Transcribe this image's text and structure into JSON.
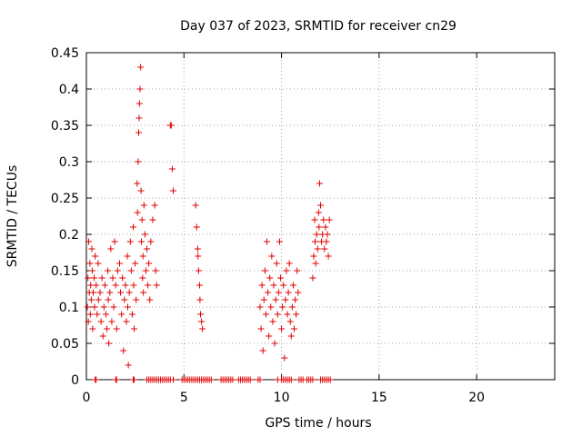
{
  "chart_data": {
    "type": "scatter",
    "title": "Day 037 of 2023, SRMTID for receiver cn29",
    "xlabel": "GPS time / hours",
    "ylabel": "SRMTID / TECUs",
    "xlim": [
      0,
      24
    ],
    "ylim": [
      0,
      0.45
    ],
    "xticks": [
      0,
      5,
      10,
      15,
      20
    ],
    "yticks": [
      0,
      0.05,
      0.1,
      0.15,
      0.2,
      0.25,
      0.3,
      0.35,
      0.4,
      0.45
    ],
    "grid": true,
    "marker": "+",
    "color": "#e00000",
    "series": [
      {
        "name": "SRMTID",
        "points": [
          [
            0.05,
            0.1
          ],
          [
            0.08,
            0.14
          ],
          [
            0.1,
            0.08
          ],
          [
            0.12,
            0.19
          ],
          [
            0.15,
            0.12
          ],
          [
            0.18,
            0.16
          ],
          [
            0.2,
            0.09
          ],
          [
            0.22,
            0.13
          ],
          [
            0.25,
            0.11
          ],
          [
            0.28,
            0.18
          ],
          [
            0.3,
            0.15
          ],
          [
            0.32,
            0.07
          ],
          [
            0.35,
            0.12
          ],
          [
            0.4,
            0.14
          ],
          [
            0.42,
            0.1
          ],
          [
            0.45,
            0.17
          ],
          [
            0.5,
            0.13
          ],
          [
            0.55,
            0.09
          ],
          [
            0.6,
            0.16
          ],
          [
            0.62,
            0.11
          ],
          [
            0.7,
            0.12
          ],
          [
            0.75,
            0.08
          ],
          [
            0.8,
            0.14
          ],
          [
            0.85,
            0.06
          ],
          [
            0.9,
            0.1
          ],
          [
            0.95,
            0.13
          ],
          [
            1.0,
            0.09
          ],
          [
            1.05,
            0.07
          ],
          [
            1.1,
            0.15
          ],
          [
            1.12,
            0.11
          ],
          [
            1.15,
            0.05
          ],
          [
            1.2,
            0.12
          ],
          [
            1.25,
            0.18
          ],
          [
            1.3,
            0.08
          ],
          [
            1.35,
            0.14
          ],
          [
            1.4,
            0.1
          ],
          [
            1.45,
            0.19
          ],
          [
            1.5,
            0.13
          ],
          [
            1.55,
            0.07
          ],
          [
            1.6,
            0.15
          ],
          [
            1.7,
            0.16
          ],
          [
            1.75,
            0.12
          ],
          [
            1.8,
            0.09
          ],
          [
            1.85,
            0.14
          ],
          [
            1.9,
            0.04
          ],
          [
            1.95,
            0.11
          ],
          [
            2.0,
            0.13
          ],
          [
            2.05,
            0.08
          ],
          [
            2.1,
            0.17
          ],
          [
            2.12,
            0.1
          ],
          [
            2.15,
            0.02
          ],
          [
            2.2,
            0.12
          ],
          [
            2.25,
            0.19
          ],
          [
            2.3,
            0.15
          ],
          [
            2.35,
            0.09
          ],
          [
            2.4,
            0.21
          ],
          [
            2.42,
            0.13
          ],
          [
            2.45,
            0.07
          ],
          [
            2.5,
            0.16
          ],
          [
            2.55,
            0.11
          ],
          [
            2.6,
            0.27
          ],
          [
            2.62,
            0.23
          ],
          [
            2.65,
            0.3
          ],
          [
            2.68,
            0.34
          ],
          [
            2.7,
            0.36
          ],
          [
            2.72,
            0.38
          ],
          [
            2.75,
            0.4
          ],
          [
            2.78,
            0.43
          ],
          [
            2.8,
            0.26
          ],
          [
            2.82,
            0.19
          ],
          [
            2.85,
            0.22
          ],
          [
            2.88,
            0.14
          ],
          [
            2.9,
            0.17
          ],
          [
            2.92,
            0.12
          ],
          [
            2.95,
            0.24
          ],
          [
            3.0,
            0.2
          ],
          [
            3.05,
            0.15
          ],
          [
            3.1,
            0.18
          ],
          [
            3.15,
            0.13
          ],
          [
            3.2,
            0.16
          ],
          [
            3.25,
            0.11
          ],
          [
            3.3,
            0.19
          ],
          [
            3.4,
            0.22
          ],
          [
            3.5,
            0.24
          ],
          [
            3.55,
            0.15
          ],
          [
            3.6,
            0.13
          ],
          [
            4.3,
            0.35
          ],
          [
            4.35,
            0.35
          ],
          [
            4.4,
            0.29
          ],
          [
            4.45,
            0.26
          ],
          [
            5.6,
            0.24
          ],
          [
            5.65,
            0.21
          ],
          [
            5.7,
            0.18
          ],
          [
            5.72,
            0.17
          ],
          [
            5.75,
            0.15
          ],
          [
            5.8,
            0.13
          ],
          [
            5.82,
            0.11
          ],
          [
            5.85,
            0.09
          ],
          [
            5.9,
            0.08
          ],
          [
            5.95,
            0.07
          ],
          [
            8.9,
            0.1
          ],
          [
            8.95,
            0.07
          ],
          [
            9.0,
            0.13
          ],
          [
            9.05,
            0.04
          ],
          [
            9.1,
            0.11
          ],
          [
            9.15,
            0.15
          ],
          [
            9.2,
            0.09
          ],
          [
            9.25,
            0.19
          ],
          [
            9.3,
            0.12
          ],
          [
            9.35,
            0.06
          ],
          [
            9.4,
            0.14
          ],
          [
            9.45,
            0.1
          ],
          [
            9.5,
            0.17
          ],
          [
            9.55,
            0.08
          ],
          [
            9.6,
            0.13
          ],
          [
            9.65,
            0.05
          ],
          [
            9.7,
            0.11
          ],
          [
            9.75,
            0.16
          ],
          [
            9.8,
            0.09
          ],
          [
            9.85,
            0.12
          ],
          [
            9.9,
            0.19
          ],
          [
            9.95,
            0.14
          ],
          [
            10.0,
            0.07
          ],
          [
            10.05,
            0.1
          ],
          [
            10.1,
            0.13
          ],
          [
            10.15,
            0.03
          ],
          [
            10.2,
            0.11
          ],
          [
            10.25,
            0.15
          ],
          [
            10.3,
            0.09
          ],
          [
            10.35,
            0.12
          ],
          [
            10.4,
            0.16
          ],
          [
            10.45,
            0.08
          ],
          [
            10.5,
            0.06
          ],
          [
            10.55,
            0.1
          ],
          [
            10.6,
            0.13
          ],
          [
            10.65,
            0.07
          ],
          [
            10.7,
            0.11
          ],
          [
            10.75,
            0.09
          ],
          [
            10.8,
            0.15
          ],
          [
            10.85,
            0.12
          ],
          [
            11.6,
            0.14
          ],
          [
            11.65,
            0.17
          ],
          [
            11.7,
            0.22
          ],
          [
            11.72,
            0.19
          ],
          [
            11.75,
            0.16
          ],
          [
            11.8,
            0.2
          ],
          [
            11.85,
            0.18
          ],
          [
            11.9,
            0.23
          ],
          [
            11.92,
            0.21
          ],
          [
            11.95,
            0.27
          ],
          [
            12.0,
            0.24
          ],
          [
            12.05,
            0.19
          ],
          [
            12.1,
            0.2
          ],
          [
            12.15,
            0.22
          ],
          [
            12.2,
            0.18
          ],
          [
            12.25,
            0.21
          ],
          [
            12.3,
            0.19
          ],
          [
            12.35,
            0.2
          ],
          [
            12.4,
            0.17
          ],
          [
            12.45,
            0.22
          ],
          [
            0.45,
            0
          ],
          [
            0.5,
            0
          ],
          [
            1.5,
            0
          ],
          [
            1.55,
            0
          ],
          [
            2.4,
            0
          ],
          [
            2.45,
            0
          ],
          [
            3.1,
            0
          ],
          [
            3.2,
            0
          ],
          [
            3.3,
            0
          ],
          [
            3.4,
            0
          ],
          [
            3.5,
            0
          ],
          [
            3.6,
            0
          ],
          [
            3.7,
            0
          ],
          [
            3.8,
            0
          ],
          [
            3.9,
            0
          ],
          [
            4.0,
            0
          ],
          [
            4.1,
            0
          ],
          [
            4.2,
            0
          ],
          [
            4.3,
            0
          ],
          [
            4.45,
            0
          ],
          [
            4.9,
            0
          ],
          [
            5.0,
            0
          ],
          [
            5.1,
            0
          ],
          [
            5.2,
            0
          ],
          [
            5.3,
            0
          ],
          [
            5.4,
            0
          ],
          [
            5.5,
            0
          ],
          [
            5.6,
            0
          ],
          [
            5.7,
            0
          ],
          [
            5.8,
            0
          ],
          [
            5.9,
            0
          ],
          [
            6.0,
            0
          ],
          [
            6.1,
            0
          ],
          [
            6.2,
            0
          ],
          [
            6.3,
            0
          ],
          [
            6.4,
            0
          ],
          [
            6.9,
            0
          ],
          [
            7.0,
            0
          ],
          [
            7.1,
            0
          ],
          [
            7.2,
            0
          ],
          [
            7.3,
            0
          ],
          [
            7.4,
            0
          ],
          [
            7.5,
            0
          ],
          [
            7.8,
            0
          ],
          [
            7.9,
            0
          ],
          [
            8.0,
            0
          ],
          [
            8.1,
            0
          ],
          [
            8.2,
            0
          ],
          [
            8.3,
            0
          ],
          [
            8.4,
            0
          ],
          [
            8.8,
            0
          ],
          [
            8.9,
            0
          ],
          [
            9.8,
            0
          ],
          [
            10.0,
            0
          ],
          [
            10.1,
            0
          ],
          [
            10.2,
            0
          ],
          [
            10.3,
            0
          ],
          [
            10.4,
            0
          ],
          [
            10.5,
            0
          ],
          [
            10.9,
            0
          ],
          [
            11.0,
            0
          ],
          [
            11.1,
            0
          ],
          [
            11.3,
            0
          ],
          [
            11.4,
            0
          ],
          [
            11.5,
            0
          ],
          [
            11.6,
            0
          ],
          [
            12.0,
            0
          ],
          [
            12.1,
            0
          ],
          [
            12.2,
            0
          ],
          [
            12.3,
            0
          ],
          [
            12.4,
            0
          ],
          [
            12.5,
            0
          ]
        ]
      }
    ]
  }
}
